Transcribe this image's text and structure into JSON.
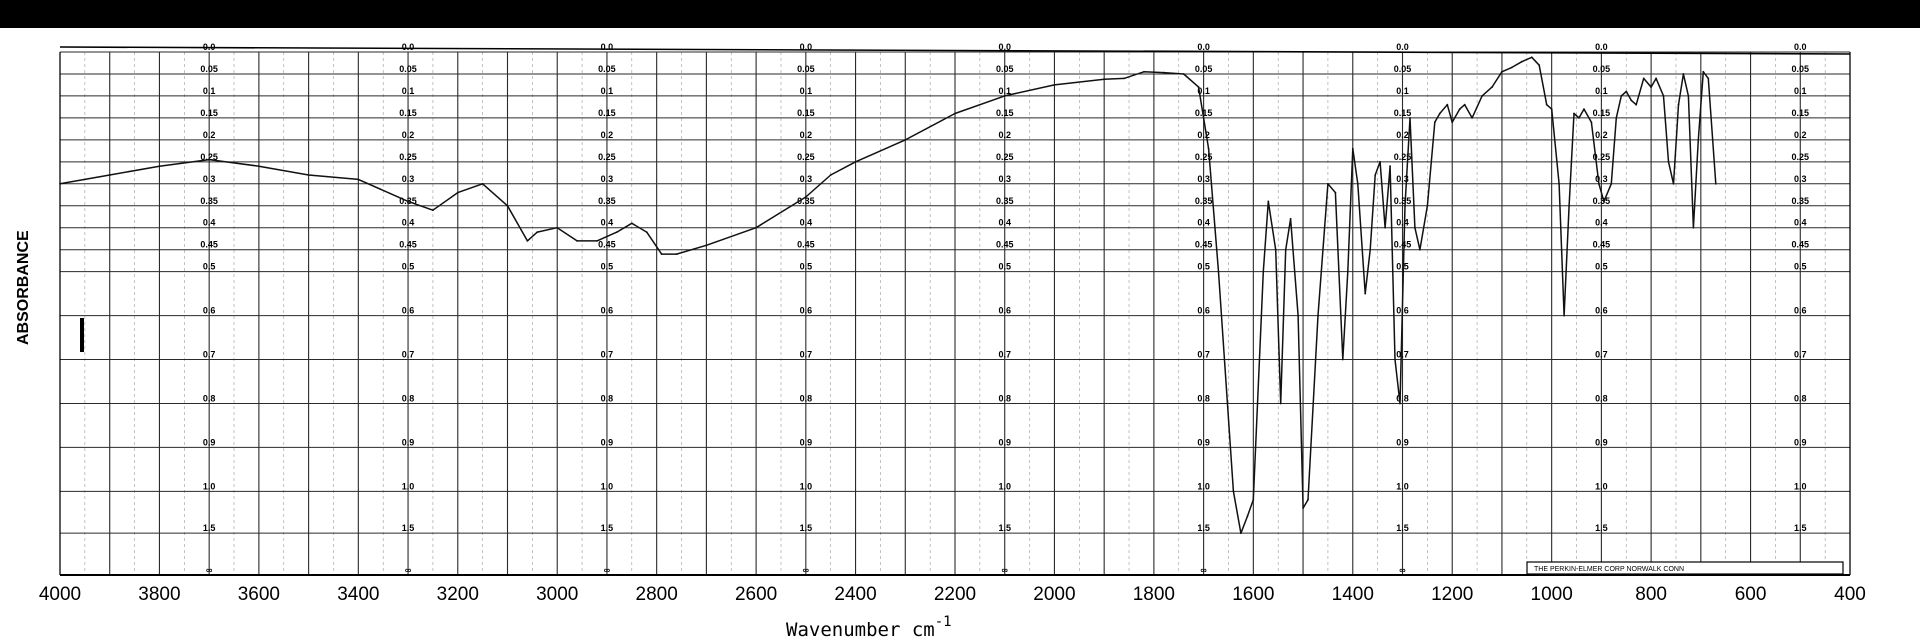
{
  "chart_data": {
    "type": "line",
    "title": "",
    "xlabel": "Wavenumber cm",
    "xlabel_superscript": "-1",
    "ylabel": "ABSORBANCE",
    "xlim": [
      4000,
      400
    ],
    "ylim": [
      0,
      2.0
    ],
    "y_scale": "absorbance",
    "grid": true,
    "x_tick_labels": [
      "4000",
      "3800",
      "3600",
      "3400",
      "3200",
      "3000",
      "2800",
      "2600",
      "2400",
      "2200",
      "2000",
      "1800",
      "1600",
      "1400",
      "1200",
      "1000",
      "800",
      "600",
      "400"
    ],
    "absorbance_scale": [
      "0.0",
      "0.05",
      "0.1",
      "0.15",
      "0.2",
      "0.25",
      "0.3",
      "0.35",
      "0.4",
      "0.45",
      "0.5",
      "0.6",
      "0.7",
      "0.8",
      "0.9",
      "1.0",
      "1.5",
      "∞"
    ],
    "absorbance_columns_wavenumber": [
      3700,
      3300,
      2900,
      2500,
      2100,
      1700,
      1300,
      900,
      500
    ],
    "credit_text": "THE PERKIN-ELMER CORP NORWALK CONN",
    "series": [
      {
        "color": "#111111",
        "points": [
          [
            4000,
            0.3
          ],
          [
            3900,
            0.28
          ],
          [
            3800,
            0.26
          ],
          [
            3700,
            0.245
          ],
          [
            3600,
            0.26
          ],
          [
            3500,
            0.28
          ],
          [
            3400,
            0.29
          ],
          [
            3300,
            0.34
          ],
          [
            3250,
            0.36
          ],
          [
            3200,
            0.32
          ],
          [
            3150,
            0.3
          ],
          [
            3100,
            0.35
          ],
          [
            3060,
            0.43
          ],
          [
            3040,
            0.41
          ],
          [
            3000,
            0.4
          ],
          [
            2960,
            0.43
          ],
          [
            2920,
            0.43
          ],
          [
            2880,
            0.41
          ],
          [
            2850,
            0.39
          ],
          [
            2820,
            0.41
          ],
          [
            2790,
            0.46
          ],
          [
            2760,
            0.46
          ],
          [
            2700,
            0.44
          ],
          [
            2600,
            0.4
          ],
          [
            2500,
            0.33
          ],
          [
            2450,
            0.28
          ],
          [
            2400,
            0.25
          ],
          [
            2300,
            0.2
          ],
          [
            2200,
            0.14
          ],
          [
            2100,
            0.1
          ],
          [
            2000,
            0.075
          ],
          [
            1900,
            0.062
          ],
          [
            1860,
            0.06
          ],
          [
            1820,
            0.045
          ],
          [
            1780,
            0.047
          ],
          [
            1740,
            0.05
          ],
          [
            1710,
            0.08
          ],
          [
            1690,
            0.22
          ],
          [
            1670,
            0.5
          ],
          [
            1640,
            1.0
          ],
          [
            1625,
            1.5
          ],
          [
            1612,
            1.3
          ],
          [
            1600,
            1.1
          ],
          [
            1580,
            0.5
          ],
          [
            1570,
            0.34
          ],
          [
            1555,
            0.45
          ],
          [
            1545,
            0.8
          ],
          [
            1535,
            0.45
          ],
          [
            1525,
            0.38
          ],
          [
            1510,
            0.6
          ],
          [
            1500,
            1.2
          ],
          [
            1490,
            1.1
          ],
          [
            1470,
            0.6
          ],
          [
            1450,
            0.3
          ],
          [
            1435,
            0.32
          ],
          [
            1420,
            0.7
          ],
          [
            1410,
            0.5
          ],
          [
            1400,
            0.22
          ],
          [
            1390,
            0.3
          ],
          [
            1375,
            0.55
          ],
          [
            1365,
            0.45
          ],
          [
            1355,
            0.28
          ],
          [
            1345,
            0.25
          ],
          [
            1335,
            0.4
          ],
          [
            1325,
            0.26
          ],
          [
            1315,
            0.7
          ],
          [
            1305,
            0.8
          ],
          [
            1295,
            0.35
          ],
          [
            1285,
            0.15
          ],
          [
            1275,
            0.4
          ],
          [
            1265,
            0.45
          ],
          [
            1250,
            0.35
          ],
          [
            1235,
            0.16
          ],
          [
            1225,
            0.14
          ],
          [
            1210,
            0.12
          ],
          [
            1200,
            0.16
          ],
          [
            1185,
            0.13
          ],
          [
            1175,
            0.12
          ],
          [
            1160,
            0.15
          ],
          [
            1140,
            0.1
          ],
          [
            1120,
            0.08
          ],
          [
            1100,
            0.045
          ],
          [
            1080,
            0.035
          ],
          [
            1060,
            0.022
          ],
          [
            1040,
            0.012
          ],
          [
            1025,
            0.03
          ],
          [
            1010,
            0.12
          ],
          [
            1000,
            0.13
          ],
          [
            985,
            0.3
          ],
          [
            975,
            0.6
          ],
          [
            965,
            0.35
          ],
          [
            955,
            0.14
          ],
          [
            945,
            0.15
          ],
          [
            935,
            0.13
          ],
          [
            920,
            0.16
          ],
          [
            905,
            0.3
          ],
          [
            895,
            0.34
          ],
          [
            880,
            0.3
          ],
          [
            870,
            0.15
          ],
          [
            860,
            0.1
          ],
          [
            850,
            0.09
          ],
          [
            840,
            0.11
          ],
          [
            830,
            0.12
          ],
          [
            815,
            0.06
          ],
          [
            800,
            0.08
          ],
          [
            790,
            0.06
          ],
          [
            775,
            0.1
          ],
          [
            765,
            0.25
          ],
          [
            755,
            0.3
          ],
          [
            745,
            0.12
          ],
          [
            735,
            0.05
          ],
          [
            725,
            0.1
          ],
          [
            715,
            0.4
          ],
          [
            705,
            0.2
          ],
          [
            695,
            0.045
          ],
          [
            685,
            0.06
          ],
          [
            670,
            0.3
          ]
        ]
      }
    ]
  }
}
